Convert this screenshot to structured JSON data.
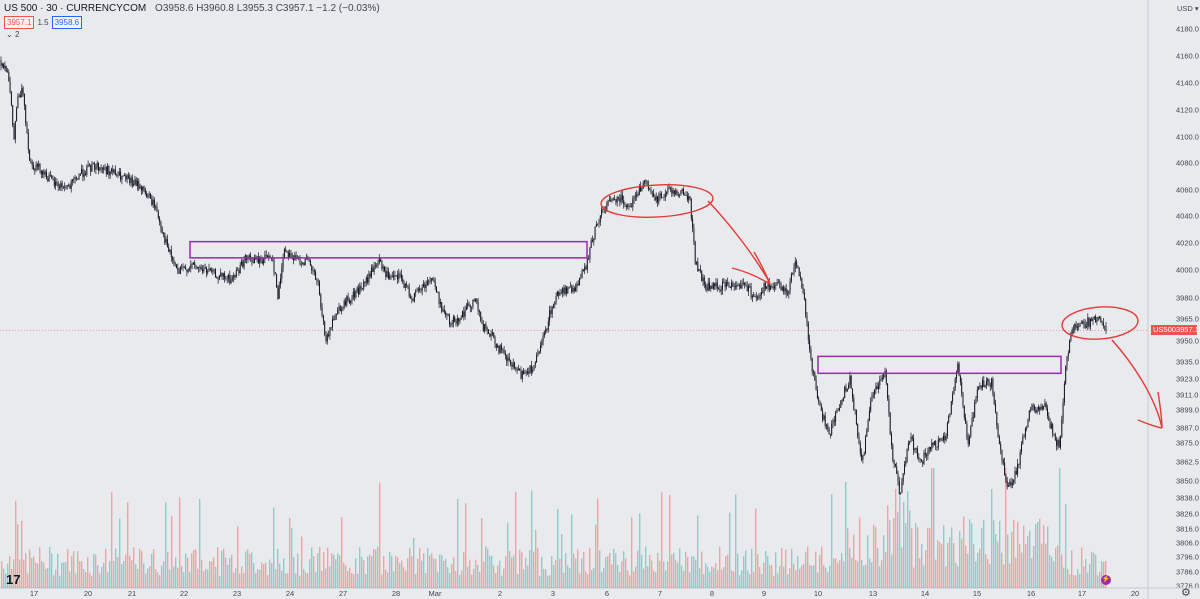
{
  "header": {
    "symbol": "US 500 · 30 · CURRENCYCOM",
    "ohlc_text": "O3958.6 H3960.8 L3955.3 C3957.1 −1.2 (−0.03%)",
    "bid": "3957.1",
    "spread": "1.5",
    "ask": "3958.6",
    "indicator_count": "2"
  },
  "axis": {
    "currency": "USD",
    "price_tag_label": "US500",
    "price_tag_value": "3957.1"
  },
  "colors": {
    "background": "#e9eaee",
    "up_volume": "#26a69a",
    "down_volume": "#ef5350",
    "candles": "#131722",
    "zone_border": "#9c27b0",
    "annotation": "#e53935"
  },
  "chart_data": {
    "type": "candlestick",
    "ylim": [
      3776,
      4188
    ],
    "y_ticks": [
      "4180.0",
      "4160.0",
      "4140.0",
      "4120.0",
      "4100.0",
      "4080.0",
      "4060.0",
      "4040.0",
      "4020.0",
      "4000.0",
      "3980.0",
      "3965.0",
      "3950.0",
      "3935.0",
      "3923.0",
      "3911.0",
      "3899.0",
      "3887.0",
      "3875.0",
      "3862.5",
      "3850.0",
      "3838.0",
      "3826.0",
      "3816.0",
      "3806.0",
      "3796.0",
      "3786.0",
      "3776.0"
    ],
    "x_ticks": [
      "17",
      "20",
      "21",
      "22",
      "23",
      "24",
      "27",
      "28",
      "Mar",
      "2",
      "3",
      "6",
      "7",
      "8",
      "9",
      "10",
      "13",
      "14",
      "15",
      "16",
      "17",
      "20"
    ],
    "last_price": 3957.1,
    "price_path": [
      {
        "x": 0,
        "y": 4157
      },
      {
        "x": 8,
        "y": 4150
      },
      {
        "x": 14,
        "y": 4098
      },
      {
        "x": 17,
        "y": 4126
      },
      {
        "x": 23,
        "y": 4135
      },
      {
        "x": 30,
        "y": 4080
      },
      {
        "x": 40,
        "y": 4076
      },
      {
        "x": 55,
        "y": 4064
      },
      {
        "x": 70,
        "y": 4062
      },
      {
        "x": 80,
        "y": 4072
      },
      {
        "x": 95,
        "y": 4078
      },
      {
        "x": 110,
        "y": 4074
      },
      {
        "x": 125,
        "y": 4068
      },
      {
        "x": 140,
        "y": 4063
      },
      {
        "x": 155,
        "y": 4048
      },
      {
        "x": 168,
        "y": 4015
      },
      {
        "x": 178,
        "y": 3998
      },
      {
        "x": 190,
        "y": 4003
      },
      {
        "x": 205,
        "y": 4000
      },
      {
        "x": 220,
        "y": 3995
      },
      {
        "x": 232,
        "y": 3993
      },
      {
        "x": 245,
        "y": 4008
      },
      {
        "x": 260,
        "y": 4007
      },
      {
        "x": 272,
        "y": 4012
      },
      {
        "x": 278,
        "y": 3980
      },
      {
        "x": 284,
        "y": 4016
      },
      {
        "x": 295,
        "y": 4008
      },
      {
        "x": 308,
        "y": 4006
      },
      {
        "x": 318,
        "y": 3990
      },
      {
        "x": 322,
        "y": 3965
      },
      {
        "x": 327,
        "y": 3950
      },
      {
        "x": 335,
        "y": 3970
      },
      {
        "x": 350,
        "y": 3980
      },
      {
        "x": 365,
        "y": 3990
      },
      {
        "x": 378,
        "y": 4007
      },
      {
        "x": 390,
        "y": 3993
      },
      {
        "x": 400,
        "y": 3995
      },
      {
        "x": 412,
        "y": 3980
      },
      {
        "x": 425,
        "y": 3990
      },
      {
        "x": 432,
        "y": 3995
      },
      {
        "x": 440,
        "y": 3976
      },
      {
        "x": 450,
        "y": 3962
      },
      {
        "x": 462,
        "y": 3968
      },
      {
        "x": 475,
        "y": 3980
      },
      {
        "x": 482,
        "y": 3960
      },
      {
        "x": 490,
        "y": 3955
      },
      {
        "x": 505,
        "y": 3938
      },
      {
        "x": 520,
        "y": 3926
      },
      {
        "x": 535,
        "y": 3933
      },
      {
        "x": 545,
        "y": 3955
      },
      {
        "x": 550,
        "y": 3970
      },
      {
        "x": 560,
        "y": 3986
      },
      {
        "x": 572,
        "y": 3985
      },
      {
        "x": 585,
        "y": 4000
      },
      {
        "x": 595,
        "y": 4030
      },
      {
        "x": 605,
        "y": 4048
      },
      {
        "x": 618,
        "y": 4055
      },
      {
        "x": 630,
        "y": 4048
      },
      {
        "x": 644,
        "y": 4066
      },
      {
        "x": 655,
        "y": 4052
      },
      {
        "x": 668,
        "y": 4060
      },
      {
        "x": 682,
        "y": 4058
      },
      {
        "x": 690,
        "y": 4053
      },
      {
        "x": 695,
        "y": 4008
      },
      {
        "x": 705,
        "y": 3988
      },
      {
        "x": 718,
        "y": 3988
      },
      {
        "x": 732,
        "y": 3990
      },
      {
        "x": 745,
        "y": 3990
      },
      {
        "x": 755,
        "y": 3980
      },
      {
        "x": 765,
        "y": 3988
      },
      {
        "x": 778,
        "y": 3988
      },
      {
        "x": 788,
        "y": 3985
      },
      {
        "x": 796,
        "y": 4009
      },
      {
        "x": 804,
        "y": 3980
      },
      {
        "x": 812,
        "y": 3930
      },
      {
        "x": 820,
        "y": 3900
      },
      {
        "x": 830,
        "y": 3883
      },
      {
        "x": 840,
        "y": 3905
      },
      {
        "x": 850,
        "y": 3924
      },
      {
        "x": 858,
        "y": 3880
      },
      {
        "x": 862,
        "y": 3860
      },
      {
        "x": 872,
        "y": 3912
      },
      {
        "x": 885,
        "y": 3928
      },
      {
        "x": 892,
        "y": 3870
      },
      {
        "x": 900,
        "y": 3840
      },
      {
        "x": 910,
        "y": 3880
      },
      {
        "x": 920,
        "y": 3862
      },
      {
        "x": 932,
        "y": 3872
      },
      {
        "x": 945,
        "y": 3878
      },
      {
        "x": 958,
        "y": 3935
      },
      {
        "x": 968,
        "y": 3873
      },
      {
        "x": 978,
        "y": 3918
      },
      {
        "x": 992,
        "y": 3920
      },
      {
        "x": 1000,
        "y": 3870
      },
      {
        "x": 1008,
        "y": 3846
      },
      {
        "x": 1018,
        "y": 3860
      },
      {
        "x": 1030,
        "y": 3900
      },
      {
        "x": 1045,
        "y": 3902
      },
      {
        "x": 1055,
        "y": 3878
      },
      {
        "x": 1060,
        "y": 3873
      },
      {
        "x": 1066,
        "y": 3935
      },
      {
        "x": 1072,
        "y": 3960
      },
      {
        "x": 1085,
        "y": 3962
      },
      {
        "x": 1100,
        "y": 3966
      },
      {
        "x": 1106,
        "y": 3957
      }
    ],
    "zones": [
      {
        "x_start": 190,
        "x_end": 587,
        "y_low": 4009,
        "y_high": 4021
      },
      {
        "x_start": 818,
        "x_end": 1061,
        "y_low": 3927,
        "y_high": 3939
      }
    ]
  }
}
